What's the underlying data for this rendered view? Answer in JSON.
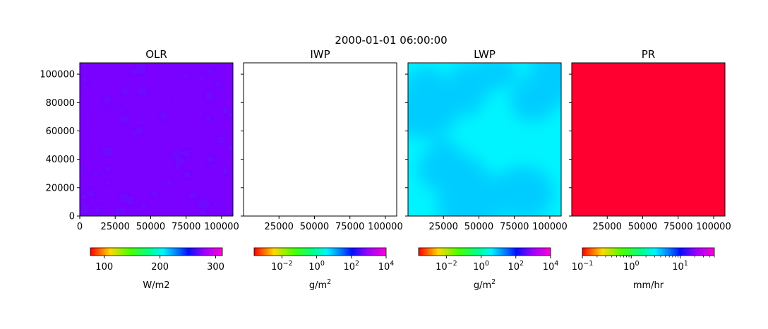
{
  "suptitle": "2000-01-01 06:00:00",
  "chart_data": [
    {
      "type": "heatmap",
      "title": "OLR",
      "field_color": "#7a00ff",
      "blob_color": "#6a10ff",
      "xlim": [
        0,
        108000
      ],
      "ylim": [
        0,
        108000
      ],
      "xticks": [
        0,
        25000,
        50000,
        75000,
        100000
      ],
      "yticks": [
        0,
        20000,
        40000,
        60000,
        80000,
        100000
      ],
      "show_ytick_labels": true,
      "colorbar": {
        "scale": "linear",
        "range": [
          75,
          312
        ],
        "ticks": [
          100,
          200,
          300
        ],
        "tick_labels": [
          "100",
          "200",
          "300"
        ],
        "label": "W/m2"
      }
    },
    {
      "type": "heatmap",
      "title": "IWP",
      "field_color": "#ffffff",
      "xlim": [
        0,
        108000
      ],
      "ylim": [
        0,
        108000
      ],
      "xticks": [
        25000,
        50000,
        75000,
        100000
      ],
      "yticks": [
        0,
        20000,
        40000,
        60000,
        80000,
        100000
      ],
      "show_ytick_labels": false,
      "colorbar": {
        "scale": "log",
        "range": [
          -3.6,
          4
        ],
        "ticks": [
          -2,
          0,
          2,
          4
        ],
        "tick_labels": [
          "10",
          "10",
          "10",
          "10"
        ],
        "tick_exponents": [
          "−2",
          "0",
          "2",
          "4"
        ],
        "label": "g/m",
        "label_exponent": "2"
      }
    },
    {
      "type": "heatmap",
      "title": "LWP",
      "field_color": "#00f4ff",
      "blob_color": "#00c6ff",
      "xlim": [
        0,
        108000
      ],
      "ylim": [
        0,
        108000
      ],
      "xticks": [
        25000,
        50000,
        75000,
        100000
      ],
      "yticks": [
        0,
        20000,
        40000,
        60000,
        80000,
        100000
      ],
      "show_ytick_labels": false,
      "colorbar": {
        "scale": "log",
        "range": [
          -3.6,
          4
        ],
        "ticks": [
          -2,
          0,
          2,
          4
        ],
        "tick_labels": [
          "10",
          "10",
          "10",
          "10"
        ],
        "tick_exponents": [
          "−2",
          "0",
          "2",
          "4"
        ],
        "label": "g/m",
        "label_exponent": "2"
      }
    },
    {
      "type": "heatmap",
      "title": "PR",
      "field_color": "#ff0030",
      "xlim": [
        0,
        108000
      ],
      "ylim": [
        0,
        108000
      ],
      "xticks": [
        25000,
        50000,
        75000,
        100000
      ],
      "yticks": [
        0,
        20000,
        40000,
        60000,
        80000,
        100000
      ],
      "show_ytick_labels": false,
      "colorbar": {
        "scale": "log",
        "range": [
          -1,
          1.7
        ],
        "ticks": [
          -1,
          0,
          1
        ],
        "tick_labels": [
          "10",
          "10",
          "10"
        ],
        "tick_exponents": [
          "−1",
          "0",
          "1"
        ],
        "minor_ticks": true,
        "label": "mm/hr"
      }
    }
  ]
}
